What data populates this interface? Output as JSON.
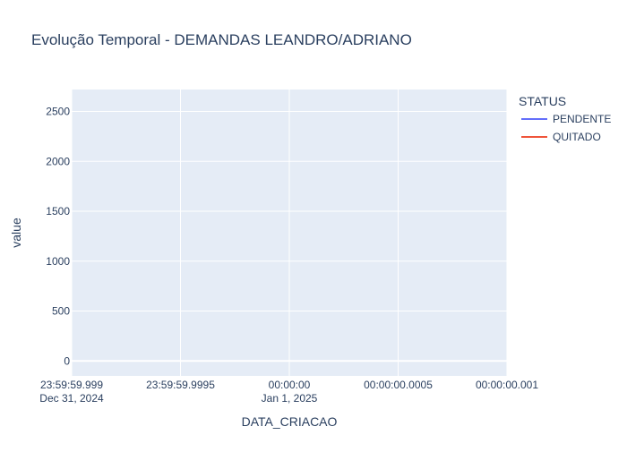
{
  "chart_data": {
    "type": "line",
    "title": "Evolução Temporal - DEMANDAS LEANDRO/ADRIANO",
    "xlabel": "DATA_CRIACAO",
    "ylabel": "value",
    "ylim": [
      -150,
      2720
    ],
    "y_ticks": [
      0,
      500,
      1000,
      1500,
      2000,
      2500
    ],
    "x_ticks": [
      {
        "line1": "23:59:59.999",
        "line2": "Dec 31, 2024"
      },
      {
        "line1": "23:59:59.9995",
        "line2": ""
      },
      {
        "line1": "00:00:00",
        "line2": "Jan 1, 2025"
      },
      {
        "line1": "00:00:00.0005",
        "line2": ""
      },
      {
        "line1": "00:00:00.001",
        "line2": ""
      }
    ],
    "grid": true,
    "legend_title": "STATUS",
    "legend_position": "right",
    "series": [
      {
        "name": "PENDENTE",
        "color": "#636efa",
        "values": []
      },
      {
        "name": "QUITADO",
        "color": "#ef553b",
        "values": []
      }
    ],
    "plot_bgcolor": "#e5ecf6",
    "grid_color": "#ffffff"
  }
}
